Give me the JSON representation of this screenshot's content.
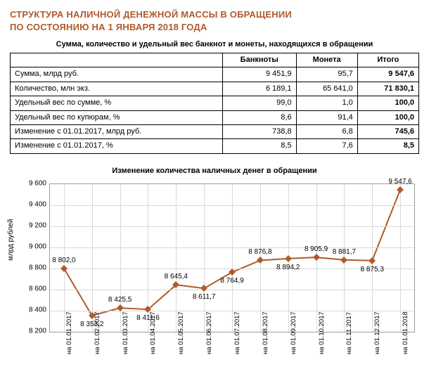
{
  "header": {
    "line1": "СТРУКТУРА НАЛИЧНОЙ ДЕНЕЖНОЙ МАССЫ В ОБРАЩЕНИИ",
    "line2": "ПО СОСТОЯНИЮ НА 1 ЯНВАРЯ 2018 ГОДА",
    "subtitle": "Сумма, количество и удельный вес банкнот и монеты, находящихся в обращении"
  },
  "table": {
    "columns": [
      "",
      "Банкноты",
      "Монета",
      "Итого"
    ],
    "rows": [
      {
        "label": "Сумма, млрд руб.",
        "c1": "9 451,9",
        "c2": "95,7",
        "c3": "9 547,6"
      },
      {
        "label": "Количество, млн экз.",
        "c1": "6 189,1",
        "c2": "65 641,0",
        "c3": "71 830,1"
      },
      {
        "label": "Удельный вес по сумме, %",
        "c1": "99,0",
        "c2": "1,0",
        "c3": "100,0"
      },
      {
        "label": "Удельный вес по купюрам, %",
        "c1": "8,6",
        "c2": "91,4",
        "c3": "100,0"
      },
      {
        "label": "Изменение с 01.01.2017, млрд руб.",
        "c1": "738,8",
        "c2": "6,8",
        "c3": "745,6"
      },
      {
        "label": "Изменение с 01.01.2017, %",
        "c1": "8,5",
        "c2": "7,6",
        "c3": "8,5"
      }
    ]
  },
  "chart": {
    "title": "Изменение количества наличных денег в обращении",
    "ylabel": "млрд рублей",
    "ylim": [
      8200,
      9600
    ],
    "ytick_step": 200,
    "yticks": [
      8200,
      8400,
      8600,
      8800,
      9000,
      9200,
      9400,
      9600
    ],
    "categories": [
      "на 01.01.2017",
      "на 01.02.2017",
      "на 01.03.2017",
      "на 01.04.2017",
      "на 01.05.2017",
      "на 01.06.2017",
      "на 01.07.2017",
      "на 01.08.2017",
      "на 01.09.2017",
      "на 01.10.2017",
      "на 01.11.2017",
      "на 01.12.2017",
      "на 01.01.2018"
    ],
    "values": [
      8802.0,
      8353.2,
      8425.5,
      8411.6,
      8645.4,
      8611.7,
      8764.9,
      8876.8,
      8894.2,
      8905.9,
      8881.7,
      8875.3,
      9547.6
    ],
    "value_labels": [
      "8 802,0",
      "8 353,2",
      "8 425,5",
      "8 411,6",
      "8 645,4",
      "8 611,7",
      "8 764,9",
      "8 876,8",
      "8 894,2",
      "8 905,9",
      "8 881,7",
      "8 875,3",
      "9 547,6"
    ],
    "label_pos": [
      "above",
      "below",
      "above",
      "below",
      "above",
      "below",
      "below",
      "above",
      "below",
      "above",
      "above",
      "below",
      "above"
    ],
    "line_color": "#b05a2a",
    "marker_color": "#b05a2a",
    "grid_color": "#d9d9d9",
    "background_color": "#ffffff",
    "line_width": 2
  }
}
